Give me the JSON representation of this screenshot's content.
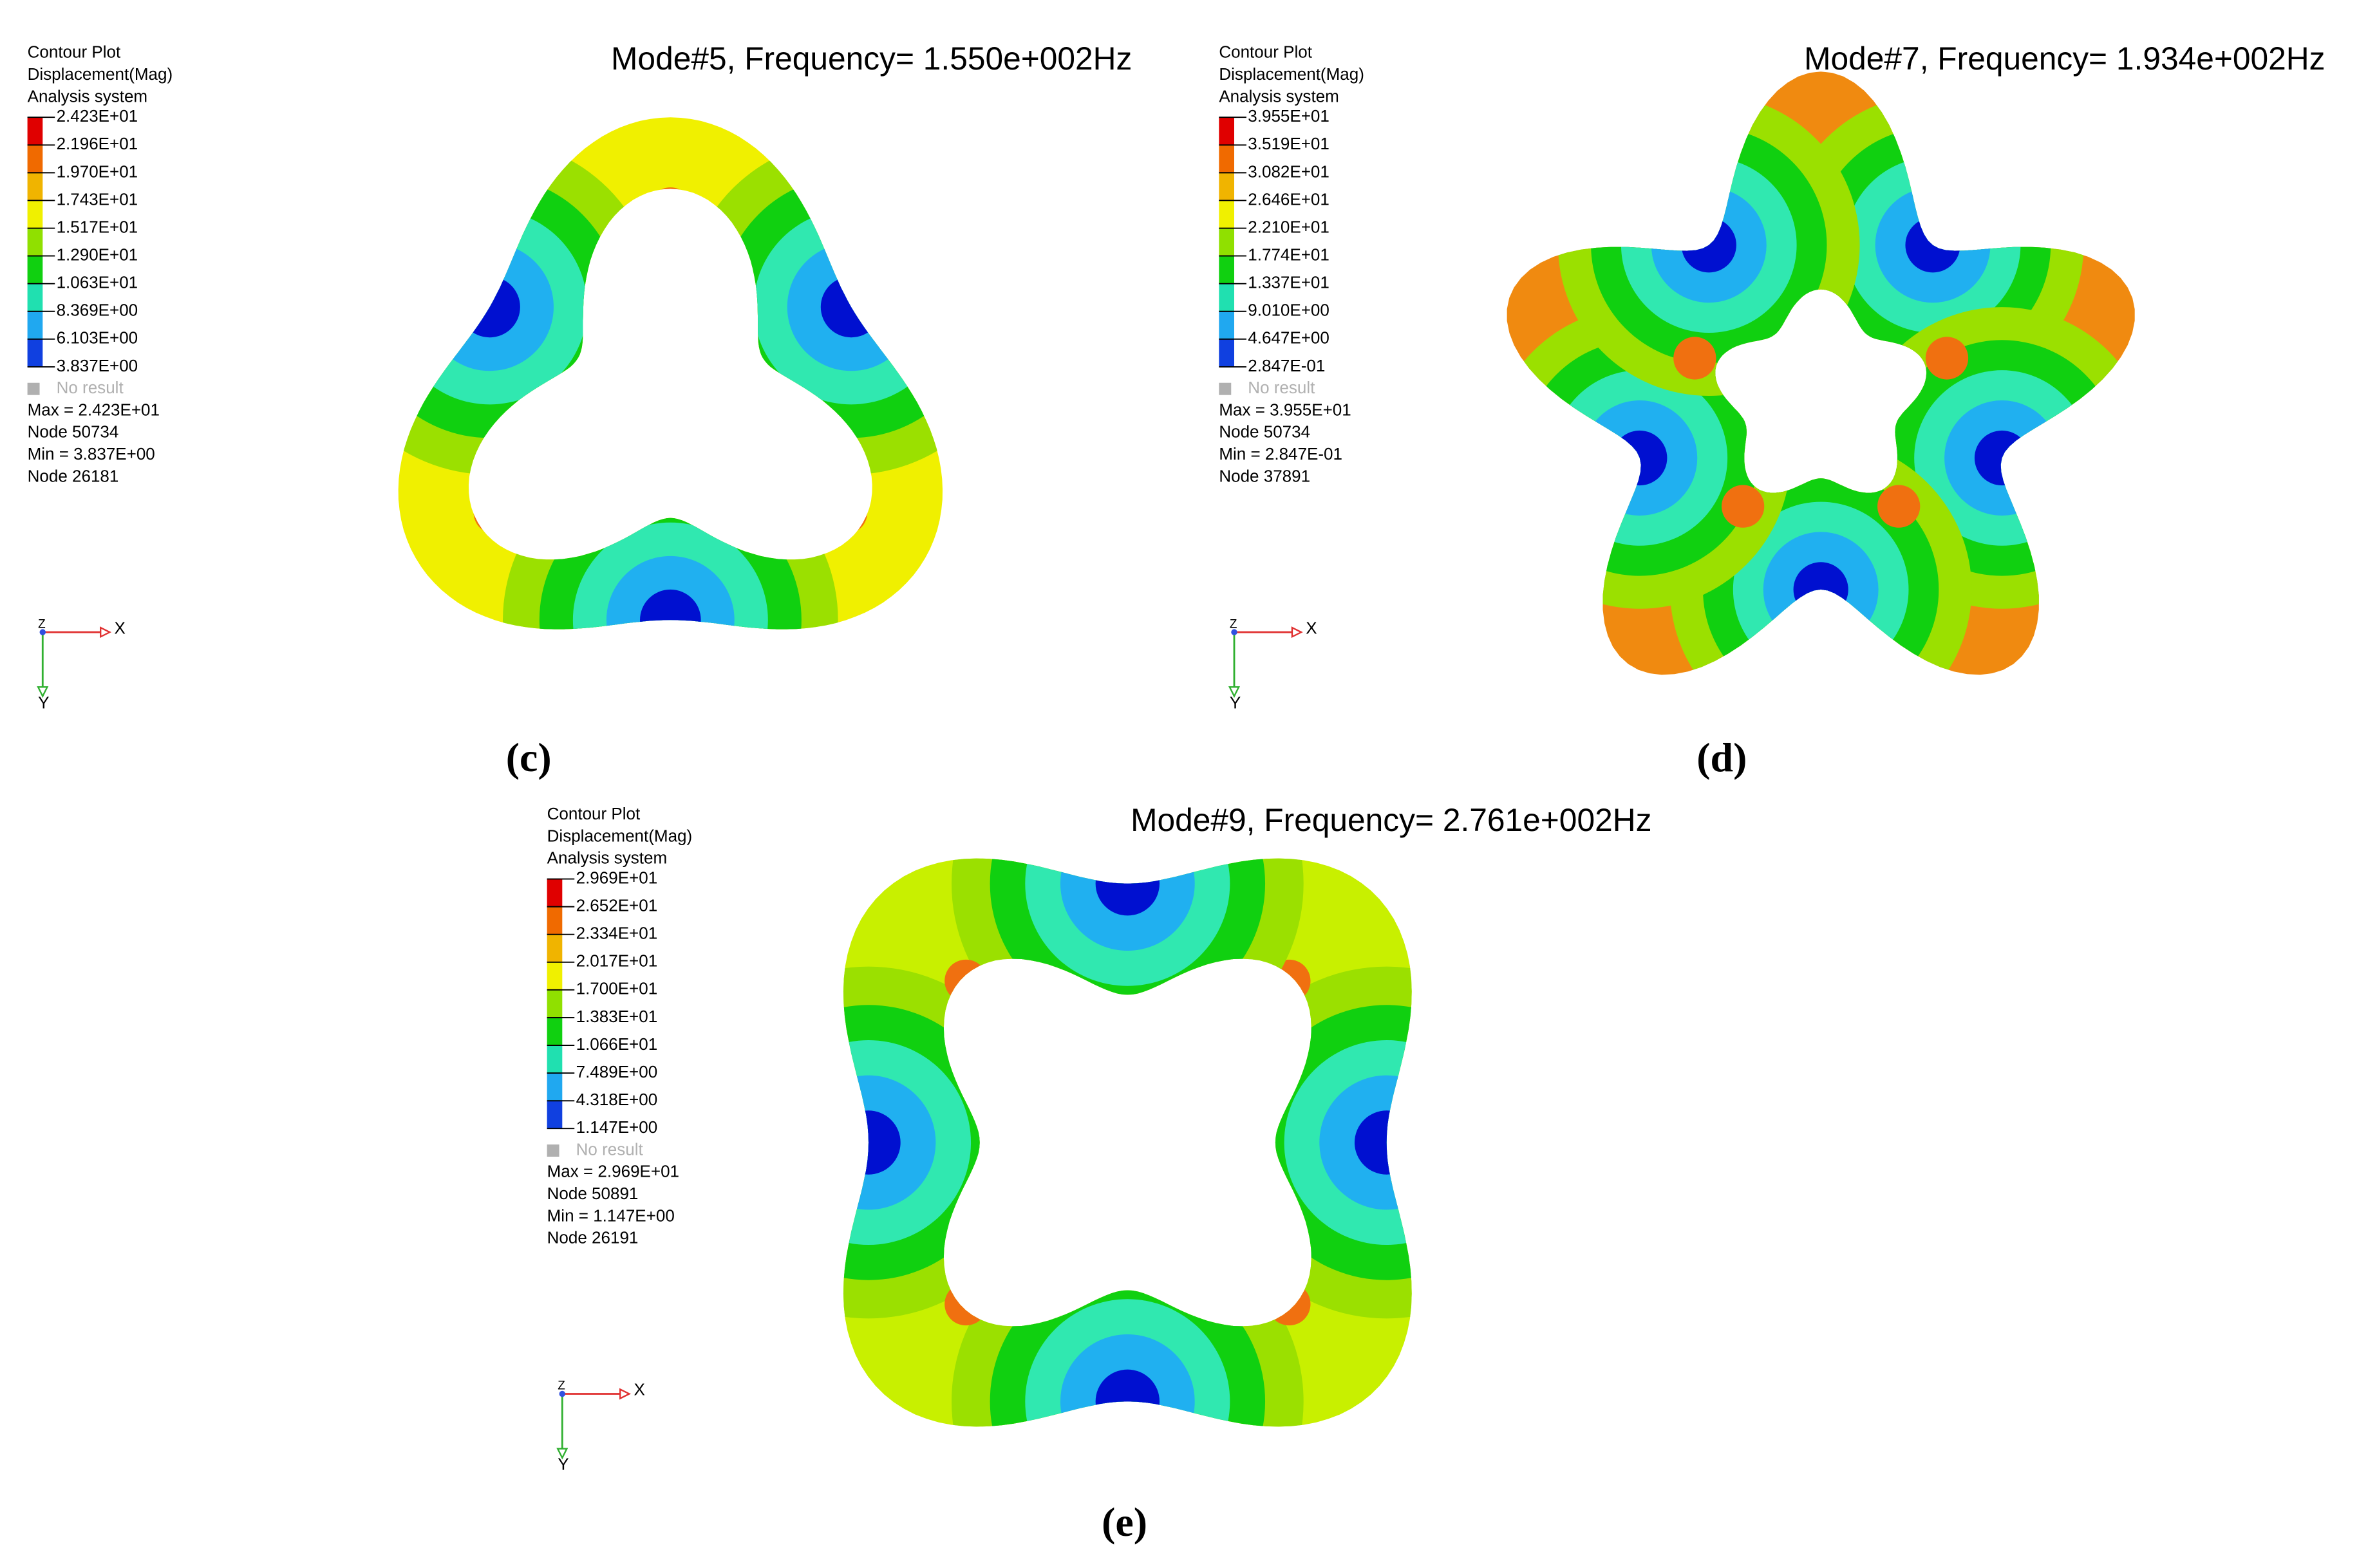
{
  "panels": [
    {
      "title": "Mode#5, Frequency= 1.550e+002Hz",
      "legend_header": [
        "Contour Plot",
        "Displacement(Mag)",
        "Analysis system"
      ],
      "levels": [
        "2.423E+01",
        "2.196E+01",
        "1.970E+01",
        "1.743E+01",
        "1.517E+01",
        "1.290E+01",
        "1.063E+01",
        "8.369E+00",
        "6.103E+00",
        "3.837E+00"
      ],
      "no_result": "No result",
      "stats": [
        "Max = 2.423E+01",
        "Node 50734",
        "Min = 3.837E+00",
        "Node 26181"
      ],
      "axes": {
        "x": "X",
        "y": "Y",
        "z": "Z"
      },
      "caption": "(c)"
    },
    {
      "title": "Mode#7, Frequency= 1.934e+002Hz",
      "legend_header": [
        "Contour Plot",
        "Displacement(Mag)",
        "Analysis system"
      ],
      "levels": [
        "3.955E+01",
        "3.519E+01",
        "3.082E+01",
        "2.646E+01",
        "2.210E+01",
        "1.774E+01",
        "1.337E+01",
        "9.010E+00",
        "4.647E+00",
        "2.847E-01"
      ],
      "no_result": "No result",
      "stats": [
        "Max = 3.955E+01",
        "Node 50734",
        "Min = 2.847E-01",
        "Node 37891"
      ],
      "axes": {
        "x": "X",
        "y": "Y",
        "z": "Z"
      },
      "caption": "(d)"
    },
    {
      "title": "Mode#9, Frequency= 2.761e+002Hz",
      "legend_header": [
        "Contour Plot",
        "Displacement(Mag)",
        "Analysis system"
      ],
      "levels": [
        "2.969E+01",
        "2.652E+01",
        "2.334E+01",
        "2.017E+01",
        "1.700E+01",
        "1.383E+01",
        "1.066E+01",
        "7.489E+00",
        "4.318E+00",
        "1.147E+00"
      ],
      "no_result": "No result",
      "stats": [
        "Max = 2.969E+01",
        "Node 50891",
        "Min = 1.147E+00",
        "Node 26191"
      ],
      "axes": {
        "x": "X",
        "y": "Y",
        "z": "Z"
      },
      "caption": "(e)"
    }
  ]
}
